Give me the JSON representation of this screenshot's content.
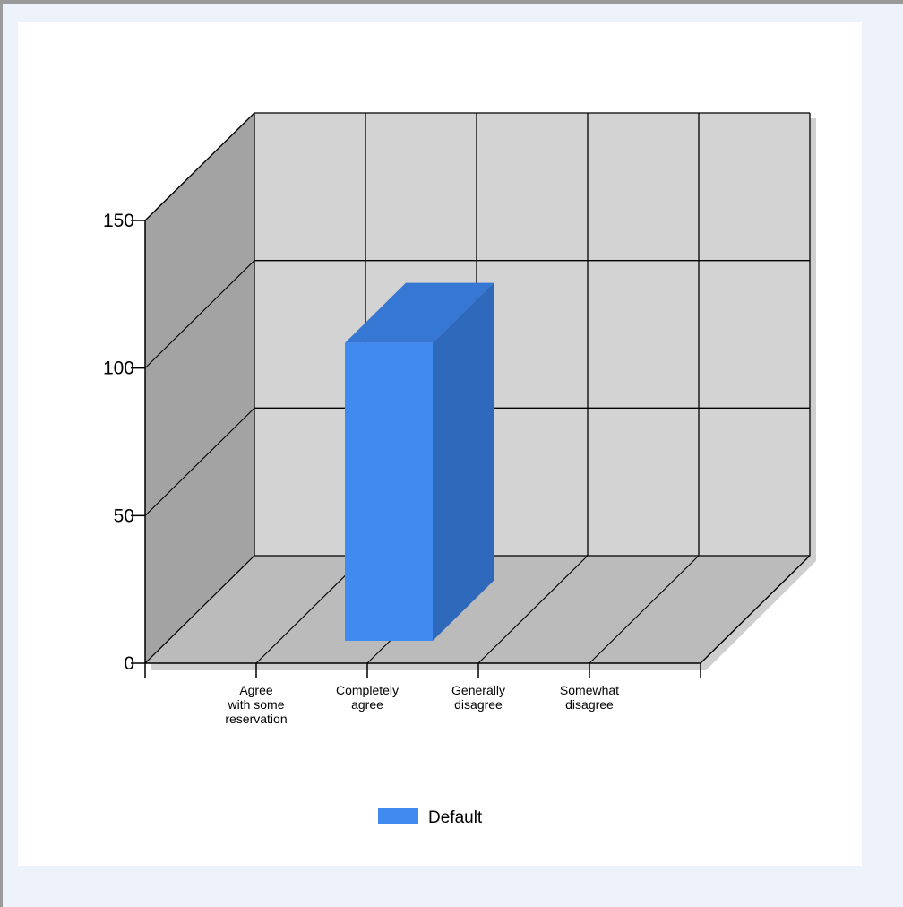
{
  "chart_data": {
    "type": "bar",
    "style": "3d-column",
    "categories": [
      "Agree with some reservation",
      "Completely agree",
      "Generally disagree",
      "Somewhat disagree"
    ],
    "category_label_lines": [
      [
        "Agree",
        "with some",
        "reservation"
      ],
      [
        "Completely",
        "agree"
      ],
      [
        "Generally",
        "disagree"
      ],
      [
        "Somewhat",
        "disagree"
      ]
    ],
    "series": [
      {
        "name": "Default",
        "values": [
          0,
          100,
          0,
          0
        ],
        "color": "#418af0"
      }
    ],
    "ylim": [
      0,
      150
    ],
    "yticks": [
      0,
      50,
      100,
      150
    ],
    "grid": true,
    "legend": "bottom-center",
    "colors": {
      "back_wall": "#d3d3d3",
      "side_wall": "#a3a3a3",
      "floor": "#bbbbbb",
      "bar_front": "#418af0",
      "bar_top": "#3677d3",
      "bar_side": "#2f69bb"
    }
  }
}
